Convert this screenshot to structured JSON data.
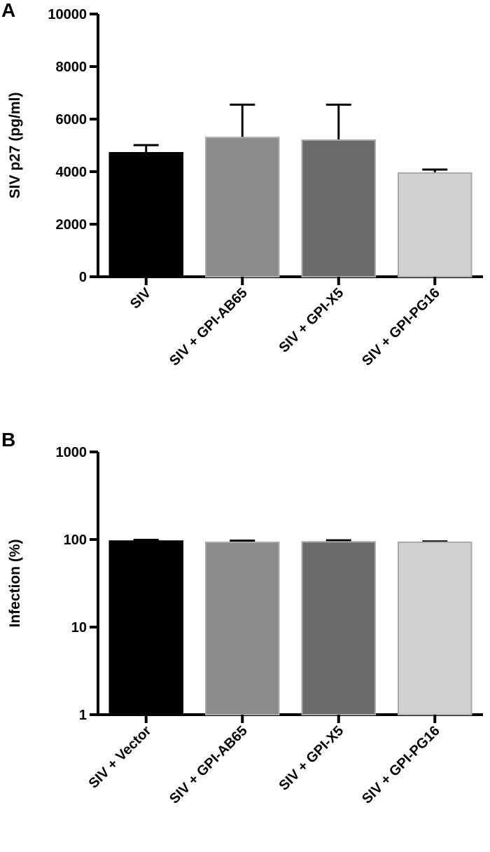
{
  "chart_data": [
    {
      "type": "bar",
      "panel": "A",
      "y_label": "SIV p27 (pg/ml)",
      "categories": [
        "SIV",
        "SIV + GPI-AB65",
        "SIV + GPI-X5",
        "SIV + GPI-PG16"
      ],
      "values": [
        4720,
        5300,
        5200,
        3950
      ],
      "errors": [
        290,
        1250,
        1350,
        130
      ],
      "colors": [
        "#000000",
        "#8c8c8c",
        "#6b6b6b",
        "#d0d0d0"
      ],
      "ylim": [
        0,
        10000
      ],
      "yticks": [
        0,
        2000,
        4000,
        6000,
        8000,
        10000
      ],
      "log_scale": false
    },
    {
      "type": "bar",
      "panel": "B",
      "y_label": "Infection (%)",
      "categories": [
        "SIV + Vector",
        "SIV + GPI-AB65",
        "SIV + GPI-X5",
        "SIV + GPI-PG16"
      ],
      "values": [
        96,
        93,
        94,
        93
      ],
      "errors": [
        3,
        4,
        4,
        2
      ],
      "colors": [
        "#000000",
        "#8c8c8c",
        "#6b6b6b",
        "#d0d0d0"
      ],
      "ylim": [
        1,
        1000
      ],
      "yticks": [
        1,
        10,
        100,
        1000
      ],
      "log_scale": true
    }
  ]
}
